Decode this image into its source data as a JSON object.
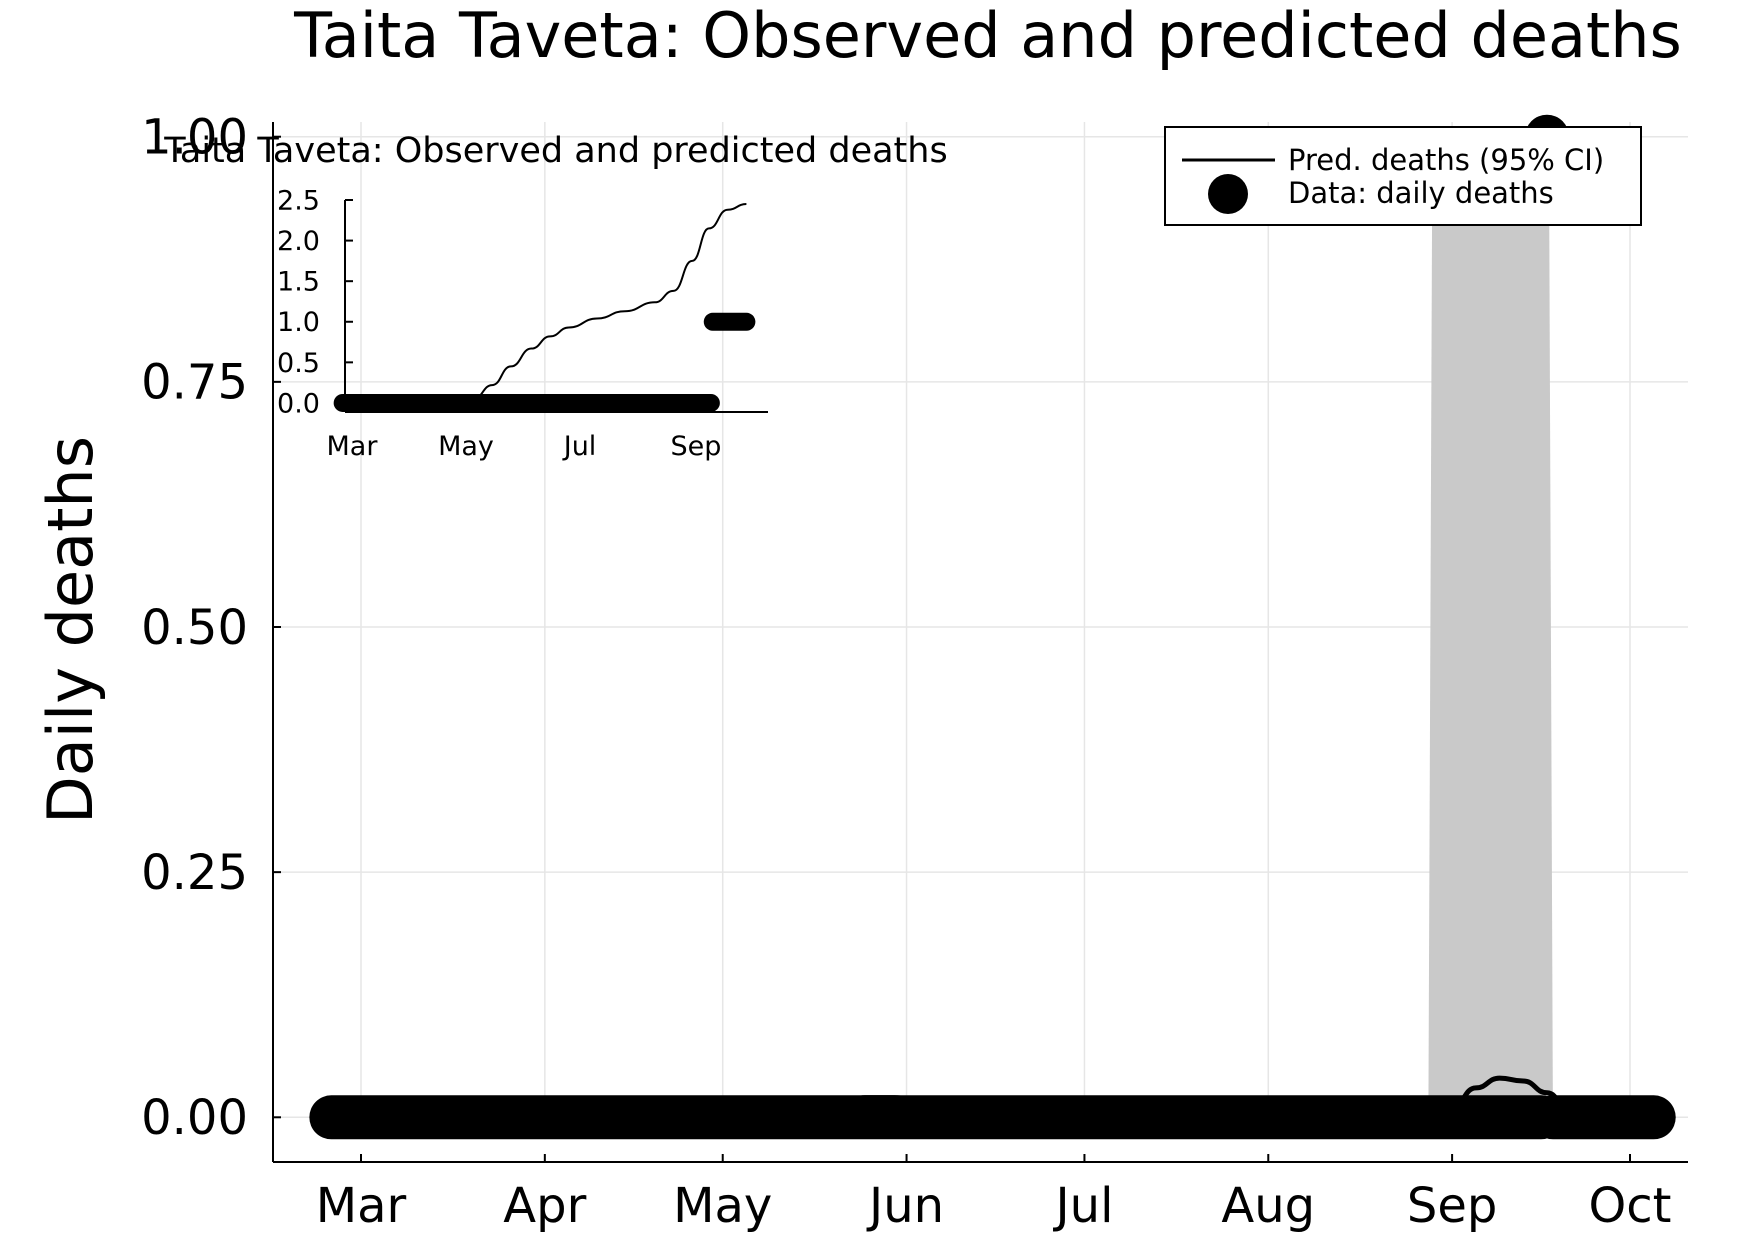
{
  "chart_data": [
    {
      "type": "line",
      "title": "Taita Taveta: Observed and predicted deaths",
      "xlabel": "",
      "ylabel": "Daily deaths",
      "x_ticks": [
        "Mar",
        "Apr",
        "May",
        "Jun",
        "Jul",
        "Aug",
        "Sep",
        "Oct"
      ],
      "y_ticks": [
        "0.00",
        "0.25",
        "0.50",
        "0.75",
        "1.00"
      ],
      "ylim": [
        -0.015,
        1.015
      ],
      "grid": true,
      "legend_position": "top-right",
      "legend": [
        "Pred. deaths (95% CI)",
        "Data: daily deaths"
      ],
      "series": [
        {
          "name": "Pred. deaths (95% CI)",
          "kind": "line",
          "points": [
            [
              "2020-02-25",
              0
            ],
            [
              "2020-05-15",
              0
            ],
            [
              "2020-05-20",
              0.005
            ],
            [
              "2020-05-25",
              0.02
            ],
            [
              "2020-05-30",
              0.02
            ],
            [
              "2020-06-05",
              0.012
            ],
            [
              "2020-06-12",
              0
            ],
            [
              "2020-08-26",
              0
            ],
            [
              "2020-09-01",
              0.01
            ],
            [
              "2020-09-05",
              0.03
            ],
            [
              "2020-09-09",
              0.04
            ],
            [
              "2020-09-13",
              0.037
            ],
            [
              "2020-09-17",
              0.025
            ],
            [
              "2020-09-21",
              0.005
            ],
            [
              "2020-09-25",
              0
            ],
            [
              "2020-10-05",
              0
            ]
          ],
          "ci_band": {
            "start": "2020-08-28",
            "end": "2020-09-18",
            "lower": 0,
            "upper": 1.0
          }
        },
        {
          "name": "Data: daily deaths",
          "kind": "scatter",
          "ranges": [
            {
              "start": "2020-02-25",
              "end": "2020-09-16",
              "value": 0
            },
            {
              "start": "2020-09-18",
              "end": "2020-10-05",
              "value": 0
            }
          ],
          "points": [
            [
              "2020-09-17",
              1
            ]
          ]
        }
      ]
    },
    {
      "type": "line",
      "title": "Taita Taveta: Observed and predicted deaths",
      "xlabel": "",
      "ylabel": "",
      "x_ticks": [
        "Mar",
        "May",
        "Jul",
        "Sep"
      ],
      "y_ticks": [
        "0.0",
        "0.5",
        "1.0",
        "1.5",
        "2.0",
        "2.5"
      ],
      "ylim": [
        -0.05,
        2.5
      ],
      "grid": false,
      "series": [
        {
          "name": "",
          "kind": "line",
          "points": [
            [
              "2020-02-25",
              0
            ],
            [
              "2020-04-25",
              0
            ],
            [
              "2020-05-05",
              0.05
            ],
            [
              "2020-05-15",
              0.22
            ],
            [
              "2020-05-25",
              0.45
            ],
            [
              "2020-06-05",
              0.67
            ],
            [
              "2020-06-15",
              0.82
            ],
            [
              "2020-06-25",
              0.93
            ],
            [
              "2020-07-10",
              1.04
            ],
            [
              "2020-07-25",
              1.13
            ],
            [
              "2020-08-10",
              1.24
            ],
            [
              "2020-08-20",
              1.38
            ],
            [
              "2020-08-30",
              1.75
            ],
            [
              "2020-09-08",
              2.15
            ],
            [
              "2020-09-18",
              2.38
            ],
            [
              "2020-09-28",
              2.45
            ]
          ]
        },
        {
          "name": "",
          "kind": "scatter",
          "ranges": [
            {
              "start": "2020-02-25",
              "end": "2020-09-09",
              "value": 0
            },
            {
              "start": "2020-09-10",
              "end": "2020-09-28",
              "value": 1.0
            }
          ]
        }
      ]
    }
  ]
}
